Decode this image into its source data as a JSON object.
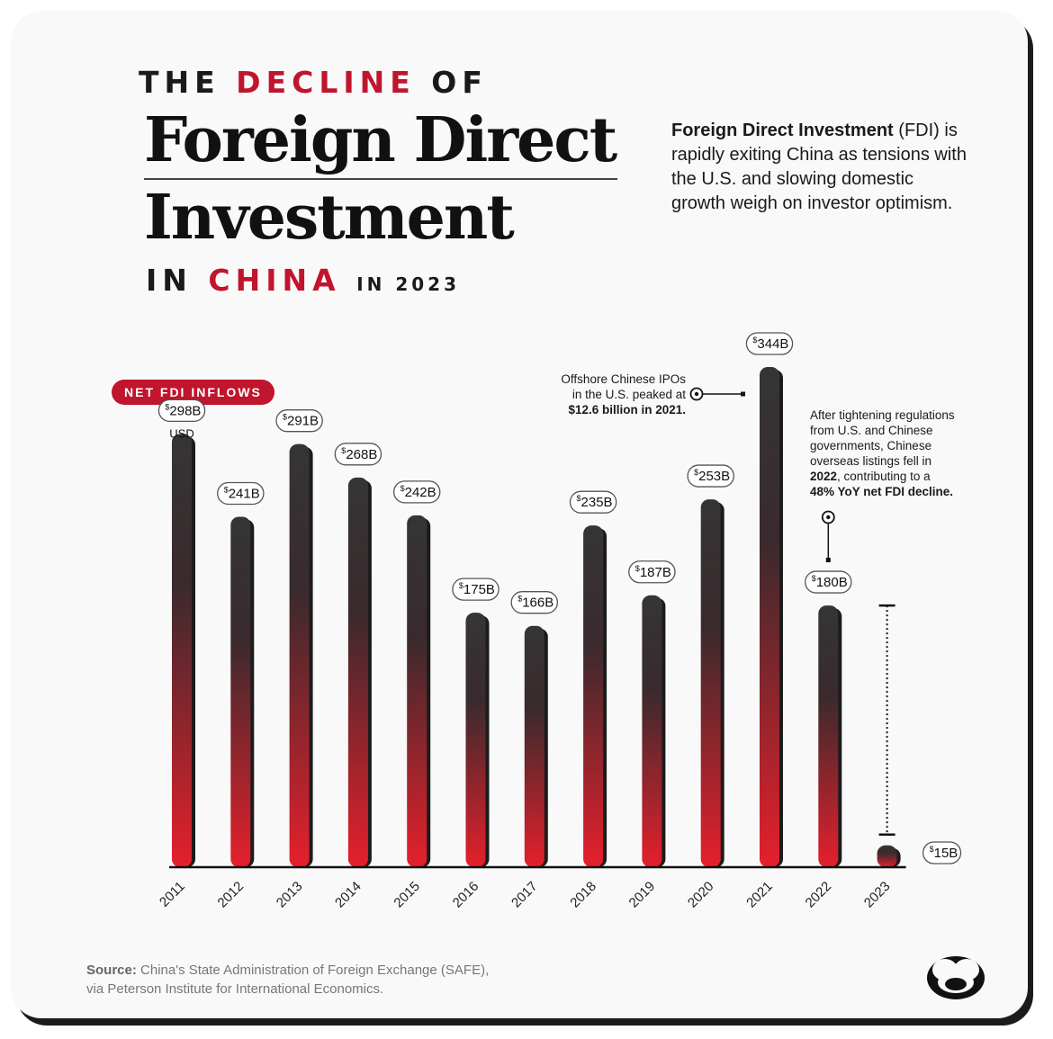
{
  "header": {
    "kicker_pre": "THE",
    "kicker_accent": "DECLINE",
    "kicker_post": "OF",
    "title_line1": "Foreign Direct",
    "title_line2": "Investment",
    "tail_pre": "IN",
    "tail_accent": "CHINA",
    "tail_post": "IN 2023"
  },
  "intro": {
    "bold": "Foreign Direct Investment",
    "rest": "(FDI) is rapidly exiting China as tensions with the U.S. and slowing domestic growth weigh on investor optimism."
  },
  "series_pill": "NET FDI INFLOWS",
  "notes": {
    "ipo_line1": "Offshore Chinese IPOs",
    "ipo_line2": "in the U.S. peaked at",
    "ipo_line3": "$12.6 billion in 2021.",
    "reg_line1": "After tightening regulations",
    "reg_line2": "from U.S. and Chinese",
    "reg_line3": "governments, Chinese",
    "reg_line4": "overseas listings fell in",
    "reg_line5_bold": "2022",
    "reg_line5_rest": ", contributing to a",
    "reg_line6": "48% YoY net FDI decline."
  },
  "source": {
    "label": "Source:",
    "text1": "China's State Administration of Foreign Exchange (SAFE),",
    "text2": "via Peterson Institute for International Economics."
  },
  "colors": {
    "accent": "#c0152d",
    "bar_top": "#353535",
    "bar_bottom": "#e5202c",
    "label_border": "#555555"
  },
  "chart_data": {
    "type": "bar",
    "categories": [
      "2011",
      "2012",
      "2013",
      "2014",
      "2015",
      "2016",
      "2017",
      "2018",
      "2019",
      "2020",
      "2021",
      "2022",
      "2023"
    ],
    "values": [
      298,
      241,
      291,
      268,
      242,
      175,
      166,
      235,
      187,
      253,
      344,
      180,
      15
    ],
    "value_labels": [
      "298B",
      "241B",
      "291B",
      "268B",
      "242B",
      "175B",
      "166B",
      "235B",
      "187B",
      "253B",
      "344B",
      "180B",
      "15B"
    ],
    "currency_symbol": "$",
    "unit_note": "USD",
    "ylim": [
      0,
      344
    ],
    "grid": false
  }
}
